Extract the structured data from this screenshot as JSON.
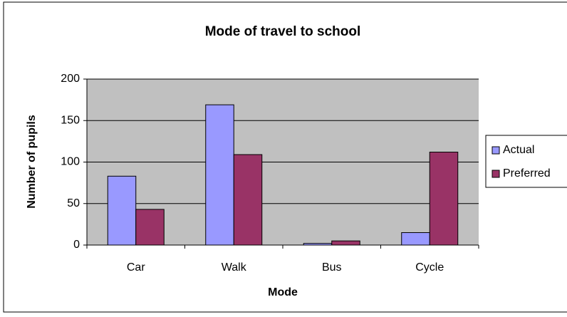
{
  "chart_data": {
    "type": "bar",
    "title": "Mode of travel to school",
    "x_label": "Mode",
    "y_label": "Number of pupils",
    "categories": [
      "Car",
      "Walk",
      "Bus",
      "Cycle"
    ],
    "series": [
      {
        "name": "Actual",
        "color": "#9999ff",
        "values": [
          83,
          169,
          2,
          15
        ]
      },
      {
        "name": "Preferred",
        "color": "#993366",
        "values": [
          43,
          109,
          5,
          112
        ]
      }
    ],
    "ylim": [
      0,
      200
    ],
    "yticks": [
      0,
      50,
      100,
      150,
      200
    ],
    "grid": true,
    "legend": "right"
  }
}
